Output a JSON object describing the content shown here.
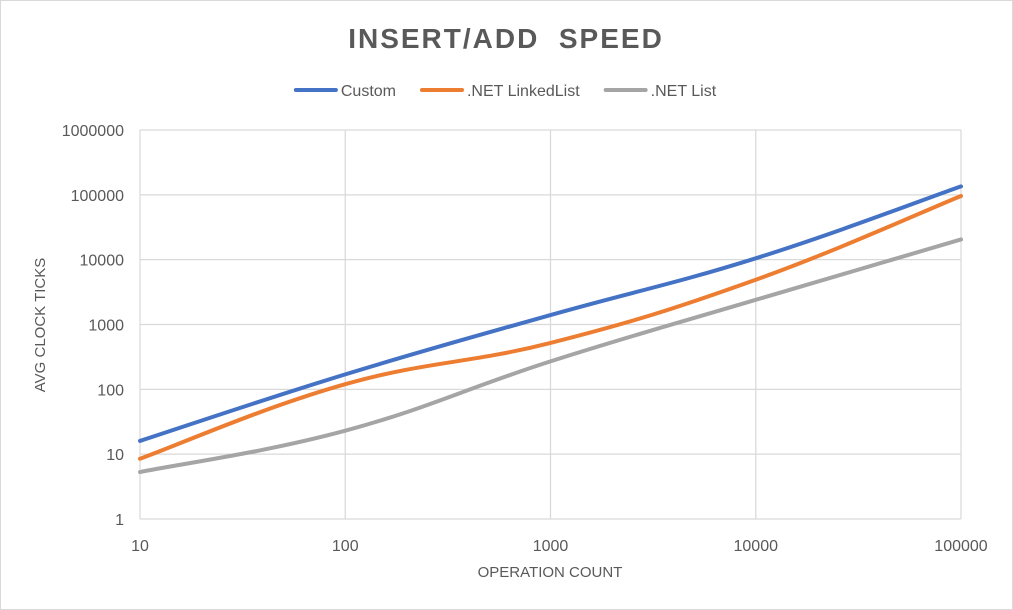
{
  "chart_data": {
    "type": "line",
    "title": "INSERT/ADD  SPEED",
    "xlabel": "OPERATION COUNT",
    "ylabel": "AVG CLOCK TICKS",
    "x_scale": "log",
    "y_scale": "log",
    "xlim": [
      10,
      100000
    ],
    "ylim": [
      1,
      1000000
    ],
    "x_ticks": [
      "10",
      "100",
      "1000",
      "10000",
      "100000"
    ],
    "y_ticks": [
      "1",
      "10",
      "100",
      "1000",
      "10000",
      "100000",
      "1000000"
    ],
    "grid": true,
    "legend_position": "top",
    "smooth": true,
    "series": [
      {
        "name": "Custom",
        "color": "#4472C4",
        "points": [
          [
            10,
            16
          ],
          [
            100,
            170
          ],
          [
            1000,
            1400
          ],
          [
            10000,
            10500
          ],
          [
            100000,
            135000
          ]
        ]
      },
      {
        "name": ".NET LinkedList",
        "color": "#ED7D31",
        "points": [
          [
            10,
            8.5
          ],
          [
            100,
            120
          ],
          [
            1000,
            520
          ],
          [
            10000,
            4900
          ],
          [
            100000,
            96000
          ]
        ]
      },
      {
        "name": ".NET List",
        "color": "#A5A5A5",
        "points": [
          [
            10,
            5.3
          ],
          [
            100,
            23
          ],
          [
            1000,
            270
          ],
          [
            10000,
            2400
          ],
          [
            100000,
            20500
          ]
        ]
      }
    ]
  }
}
